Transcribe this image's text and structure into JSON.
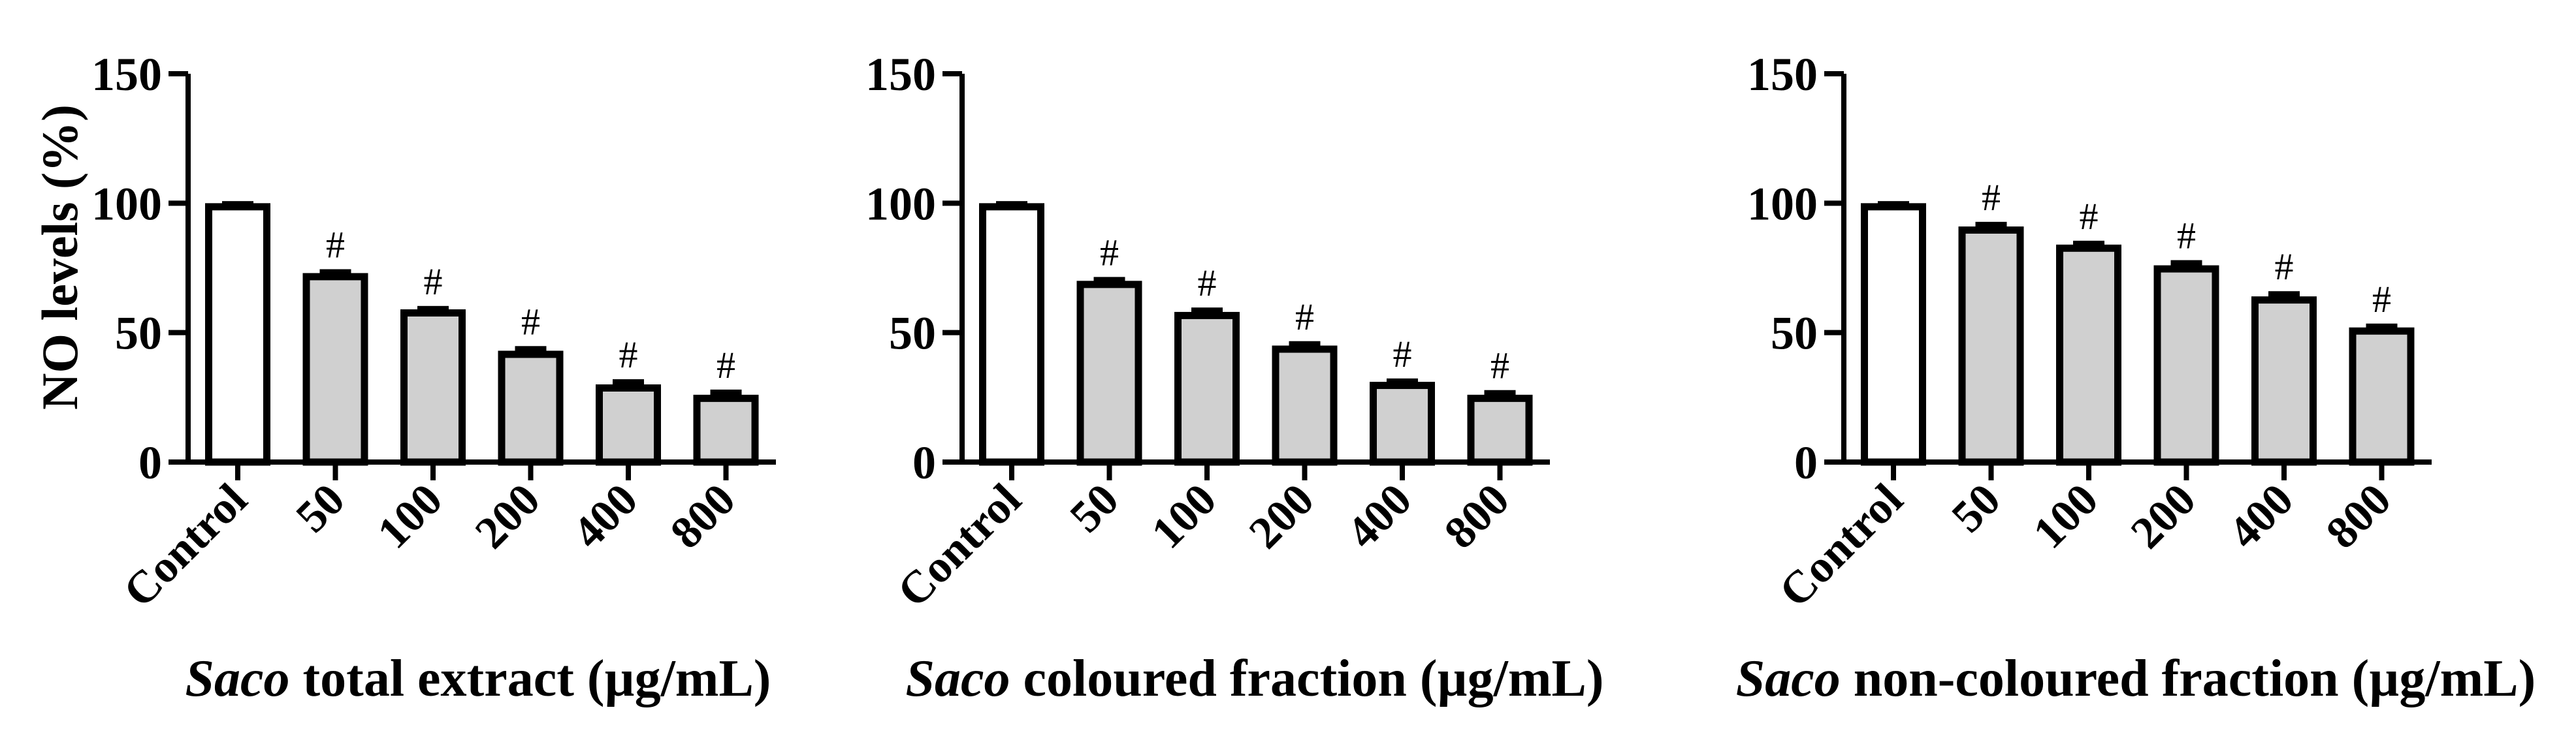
{
  "figure": {
    "panel_count": 3,
    "colors": {
      "control_fill": "#ffffff",
      "treatment_fill": "#d0d0d0",
      "outline": "#000000"
    }
  },
  "chart_data": [
    {
      "type": "bar",
      "title": "",
      "xlabel_italic": "Saco",
      "xlabel_rest": " total extract (µg/mL)",
      "xlabel": "Saco total extract (µg/mL)",
      "ylabel": "NO levels (%)",
      "ylim": [
        0,
        150
      ],
      "yticks": [
        0,
        50,
        100,
        150
      ],
      "grid": false,
      "legend": "none",
      "categories": [
        "Control",
        "50",
        "100",
        "200",
        "400",
        "800"
      ],
      "values": [
        100,
        73,
        59,
        43,
        30,
        26
      ],
      "errors": [
        0.8,
        1.5,
        1.3,
        1.8,
        2.0,
        2.0
      ],
      "significance": [
        "",
        "#",
        "#",
        "#",
        "#",
        "#"
      ]
    },
    {
      "type": "bar",
      "title": "",
      "xlabel_italic": "Saco",
      "xlabel_rest": " coloured fraction (µg/mL)",
      "xlabel": "Saco coloured fraction (µg/mL)",
      "ylabel": "",
      "ylim": [
        0,
        150
      ],
      "yticks": [
        0,
        50,
        100,
        150
      ],
      "grid": false,
      "legend": "none",
      "categories": [
        "Control",
        "50",
        "100",
        "200",
        "400",
        "800"
      ],
      "values": [
        100,
        70,
        58,
        45,
        31,
        26
      ],
      "errors": [
        0.8,
        1.5,
        1.7,
        1.7,
        1.3,
        1.8
      ],
      "significance": [
        "",
        "#",
        "#",
        "#",
        "#",
        "#"
      ]
    },
    {
      "type": "bar",
      "title": "",
      "xlabel_italic": "Saco",
      "xlabel_rest": " non-coloured fraction (µg/mL)",
      "xlabel": "Saco non-coloured fraction (µg/mL)",
      "ylabel": "",
      "ylim": [
        0,
        150
      ],
      "yticks": [
        0,
        50,
        100,
        150
      ],
      "grid": false,
      "legend": "none",
      "categories": [
        "Control",
        "50",
        "100",
        "200",
        "400",
        "800"
      ],
      "values": [
        100,
        91,
        84,
        76,
        64,
        52
      ],
      "errors": [
        0.8,
        1.8,
        1.5,
        2.0,
        2.0,
        1.5
      ],
      "significance": [
        "",
        "#",
        "#",
        "#",
        "#",
        "#"
      ]
    }
  ]
}
